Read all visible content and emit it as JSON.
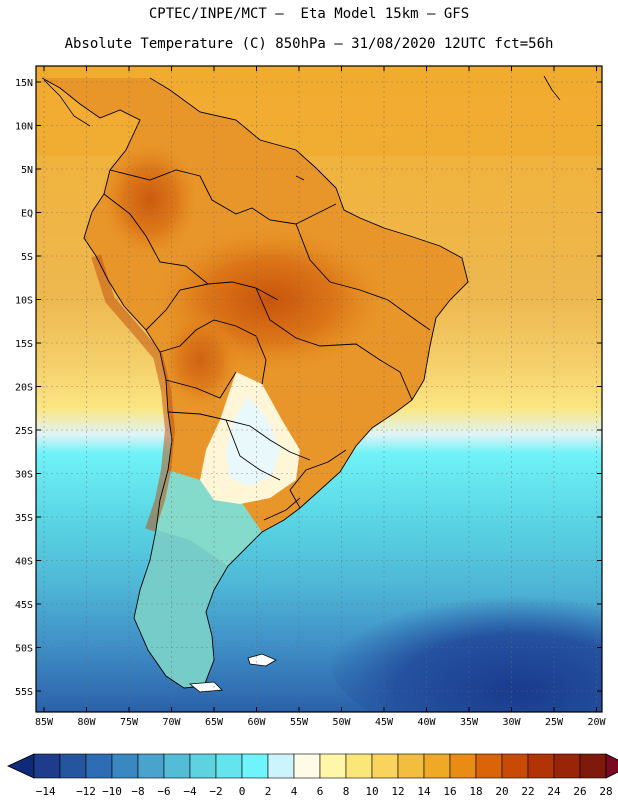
{
  "header": {
    "line1": "CPTEC/INPE/MCT –  Eta Model 15km – GFS",
    "line2": "Absolute Temperature (C) 850hPa – 31/08/2020 12UTC fct=56h"
  },
  "map": {
    "lat_labels": [
      "15N",
      "10N",
      "5N",
      "EQ",
      "5S",
      "10S",
      "15S",
      "20S",
      "25S",
      "30S",
      "35S",
      "40S",
      "45S",
      "50S",
      "55S"
    ],
    "lon_labels": [
      "85W",
      "80W",
      "75W",
      "70W",
      "65W",
      "60W",
      "55W",
      "50W",
      "45W",
      "40W",
      "35W",
      "30W",
      "25W",
      "20W"
    ]
  },
  "colorbar": {
    "labels": [
      "-14",
      "-12",
      "-10",
      "-8",
      "-6",
      "-4",
      "-2",
      "0",
      "2",
      "4",
      "6",
      "8",
      "10",
      "12",
      "14",
      "16",
      "18",
      "20",
      "22",
      "24",
      "26",
      "28"
    ],
    "colors": [
      "#1f3c8c",
      "#2655a0",
      "#2e6db4",
      "#3a88c2",
      "#4aa3cc",
      "#55bcd8",
      "#5fd2e2",
      "#66e4ee",
      "#6ef4fa",
      "#ccf4fc",
      "#fffbe6",
      "#fff7a8",
      "#fbe67a",
      "#f8d35e",
      "#f3bd3e",
      "#eeaa24",
      "#e88c14",
      "#dc6408",
      "#c84a06",
      "#b23406",
      "#9a2408",
      "#7e1a0c"
    ],
    "under_color": "#0e2a78",
    "over_color": "#7a0a22"
  }
}
